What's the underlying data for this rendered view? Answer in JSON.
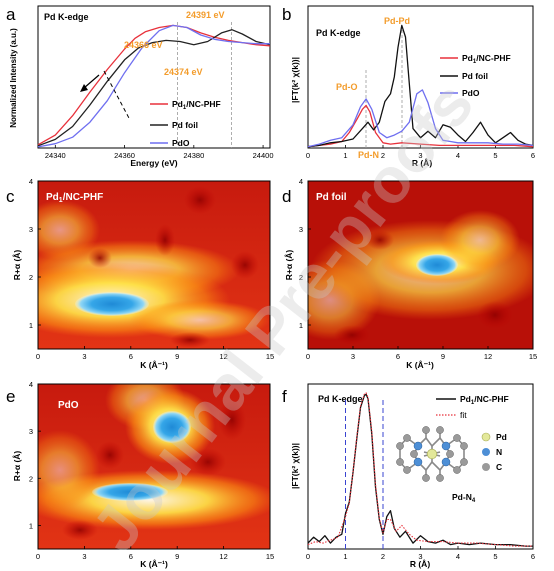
{
  "panels": {
    "a": {
      "letter": "a",
      "title": "Pd K-edge",
      "xlabel": "Energy (eV)",
      "ylabel": "Normalized Intensity (a.u.)",
      "annotations": [
        "24366 eV",
        "24374 eV",
        "24391 eV"
      ],
      "legend": [
        {
          "name": "Pd1/NC-PHF",
          "base": "Pd",
          "sub": "1",
          "rest": "/NC-PHF",
          "color": "#e8313b"
        },
        {
          "name": "Pd foil",
          "color": "#222222"
        },
        {
          "name": "PdO",
          "color": "#6f6ff0"
        }
      ]
    },
    "b": {
      "letter": "b",
      "title": "Pd K-edge",
      "xlabel": "R (Å)",
      "ylabel": "|FT(k² χ(k))|",
      "annotations": [
        "Pd-O",
        "Pd-N",
        "Pd-Pd"
      ],
      "legend": [
        {
          "name": "Pd1/NC-PHF",
          "base": "Pd",
          "sub": "1",
          "rest": "/NC-PHF",
          "color": "#e8313b"
        },
        {
          "name": "Pd foil",
          "color": "#111111"
        },
        {
          "name": "PdO",
          "color": "#6f6ff0"
        }
      ]
    },
    "c": {
      "letter": "c",
      "label": "Pd1/NC-PHF",
      "label_base": "Pd",
      "label_sub": "1",
      "label_rest": "/NC-PHF",
      "xlabel": "K (Å⁻¹)",
      "ylabel": "R+α (Å)"
    },
    "d": {
      "letter": "d",
      "label": "Pd foil",
      "xlabel": "K (Å⁻¹)",
      "ylabel": "R+α (Å)"
    },
    "e": {
      "letter": "e",
      "label": "PdO",
      "xlabel": "K (Å⁻¹)",
      "ylabel": "R+α (Å)"
    },
    "f": {
      "letter": "f",
      "title": "Pd K-edge",
      "xlabel": "R (Å)",
      "ylabel": "|FT(k² χ(k))|",
      "legend": [
        {
          "name": "Pd1/NC-PHF",
          "base": "Pd",
          "sub": "1",
          "rest": "/NC-PHF",
          "color": "#111111",
          "style": "solid"
        },
        {
          "name": "fit",
          "color": "#e8313b",
          "style": "dotted"
        }
      ],
      "inset": {
        "legend": [
          {
            "name": "Pd",
            "color": "#e3e89a"
          },
          {
            "name": "N",
            "color": "#4d8fd6"
          },
          {
            "name": "C",
            "color": "#9a9a9a"
          }
        ],
        "caption": "Pd-N4",
        "caption_base": "Pd-N",
        "caption_sub": "4"
      }
    }
  },
  "watermark": "Journal Pre-proofs",
  "chart_data": [
    {
      "panel": "a",
      "type": "line",
      "title": "Pd K-edge",
      "xlabel": "Energy (eV)",
      "ylabel": "Normalized Intensity (a.u.)",
      "xlim": [
        24335,
        24402
      ],
      "ylim": [
        0,
        1.32
      ],
      "xticks": [
        24340,
        24360,
        24380,
        24400
      ],
      "annotations": [
        "24366 eV",
        "24374 eV",
        "24391 eV"
      ],
      "series": [
        {
          "name": "Pd1/NC-PHF",
          "color": "#e8313b",
          "x": [
            24335,
            24340,
            24345,
            24350,
            24355,
            24360,
            24363,
            24366,
            24370,
            24374,
            24378,
            24382,
            24386,
            24390,
            24394,
            24398,
            24402
          ],
          "y": [
            0.03,
            0.12,
            0.3,
            0.52,
            0.73,
            0.92,
            1.02,
            1.08,
            1.12,
            1.14,
            1.12,
            1.07,
            1.03,
            1.0,
            0.98,
            0.96,
            0.95
          ]
        },
        {
          "name": "Pd foil",
          "color": "#222222",
          "x": [
            24335,
            24340,
            24345,
            24350,
            24355,
            24360,
            24364,
            24368,
            24372,
            24376,
            24380,
            24384,
            24388,
            24391,
            24394,
            24398,
            24402
          ],
          "y": [
            0.02,
            0.08,
            0.2,
            0.4,
            0.62,
            0.82,
            0.93,
            0.98,
            1.0,
            0.99,
            0.96,
            0.99,
            1.07,
            1.1,
            1.06,
            0.99,
            0.96
          ]
        },
        {
          "name": "PdO",
          "color": "#6f6ff0",
          "x": [
            24335,
            24340,
            24345,
            24350,
            24355,
            24360,
            24365,
            24370,
            24374,
            24378,
            24382,
            24386,
            24390,
            24394,
            24398,
            24402
          ],
          "y": [
            0.01,
            0.04,
            0.1,
            0.24,
            0.44,
            0.7,
            0.93,
            1.09,
            1.14,
            1.12,
            1.05,
            1.01,
            0.99,
            0.98,
            0.97,
            0.97
          ]
        }
      ]
    },
    {
      "panel": "b",
      "type": "line",
      "title": "Pd K-edge",
      "xlabel": "R (Å)",
      "ylabel": "|FT(k² χ(k))|",
      "xlim": [
        0,
        6
      ],
      "ylim": [
        0,
        1.1
      ],
      "xticks": [
        0,
        1,
        2,
        3,
        4,
        5,
        6
      ],
      "annotations": [
        "Pd-O",
        "Pd-N",
        "Pd-Pd"
      ],
      "series": [
        {
          "name": "Pd1/NC-PHF",
          "color": "#e8313b",
          "x": [
            0,
            0.3,
            0.6,
            0.9,
            1.1,
            1.3,
            1.45,
            1.55,
            1.65,
            1.8,
            2.0,
            2.2,
            2.5,
            3.0,
            3.5,
            4.0,
            4.5,
            5.0,
            5.5,
            6.0
          ],
          "y": [
            0.01,
            0.02,
            0.03,
            0.05,
            0.12,
            0.22,
            0.3,
            0.33,
            0.28,
            0.12,
            0.04,
            0.03,
            0.04,
            0.03,
            0.02,
            0.02,
            0.02,
            0.02,
            0.02,
            0.01
          ]
        },
        {
          "name": "Pd foil",
          "color": "#111111",
          "x": [
            0,
            0.3,
            0.6,
            0.9,
            1.2,
            1.45,
            1.6,
            1.75,
            1.9,
            2.05,
            2.2,
            2.3,
            2.4,
            2.5,
            2.6,
            2.7,
            2.8,
            3.0,
            3.2,
            3.4,
            3.6,
            3.8,
            4.0,
            4.2,
            4.4,
            4.6,
            4.8,
            5.0,
            5.2,
            5.4,
            5.6,
            5.8,
            6.0
          ],
          "y": [
            0.01,
            0.02,
            0.04,
            0.05,
            0.07,
            0.15,
            0.2,
            0.14,
            0.2,
            0.36,
            0.42,
            0.55,
            0.78,
            0.95,
            0.86,
            0.5,
            0.15,
            0.08,
            0.13,
            0.08,
            0.18,
            0.16,
            0.1,
            0.05,
            0.12,
            0.2,
            0.1,
            0.04,
            0.08,
            0.12,
            0.06,
            0.03,
            0.02
          ]
        },
        {
          "name": "PdO",
          "color": "#6f6ff0",
          "x": [
            0,
            0.3,
            0.6,
            0.9,
            1.2,
            1.4,
            1.55,
            1.7,
            1.9,
            2.1,
            2.3,
            2.5,
            2.7,
            2.9,
            3.05,
            3.2,
            3.4,
            3.6,
            3.8,
            4.0,
            4.4,
            4.8,
            5.2,
            5.6,
            6.0
          ],
          "y": [
            0.01,
            0.03,
            0.06,
            0.08,
            0.18,
            0.32,
            0.38,
            0.3,
            0.12,
            0.08,
            0.1,
            0.13,
            0.2,
            0.42,
            0.45,
            0.35,
            0.15,
            0.06,
            0.05,
            0.04,
            0.04,
            0.04,
            0.03,
            0.03,
            0.02
          ]
        }
      ]
    },
    {
      "panel": "c",
      "type": "heatmap",
      "title": "Pd1/NC-PHF",
      "xlabel": "K (Å⁻¹)",
      "ylabel": "R+α (Å)",
      "xlim": [
        0,
        15
      ],
      "ylim": [
        0.5,
        4
      ],
      "xticks": [
        0,
        3,
        6,
        9,
        12,
        15
      ],
      "yticks": [
        1,
        2,
        3,
        4
      ],
      "maximum": {
        "k": 4.8,
        "r": 1.5
      }
    },
    {
      "panel": "d",
      "type": "heatmap",
      "title": "Pd foil",
      "xlabel": "K (Å⁻¹)",
      "ylabel": "R+α (Å)",
      "xlim": [
        0,
        15
      ],
      "ylim": [
        0.5,
        4
      ],
      "xticks": [
        0,
        3,
        6,
        9,
        12,
        15
      ],
      "yticks": [
        1,
        2,
        3,
        4
      ],
      "maximum": {
        "k": 9.2,
        "r": 2.5
      }
    },
    {
      "panel": "e",
      "type": "heatmap",
      "title": "PdO",
      "xlabel": "K (Å⁻¹)",
      "ylabel": "R+α (Å)",
      "xlim": [
        0,
        15
      ],
      "ylim": [
        0.5,
        4
      ],
      "xticks": [
        0,
        3,
        6,
        9,
        12,
        15
      ],
      "yticks": [
        1,
        2,
        3,
        4
      ],
      "maxima": [
        {
          "k": 5.5,
          "r": 1.4
        },
        {
          "k": 8.6,
          "r": 3.0
        }
      ]
    },
    {
      "panel": "f",
      "type": "line",
      "title": "Pd K-edge",
      "xlabel": "R (Å)",
      "ylabel": "|FT(k² χ(k))|",
      "xlim": [
        0,
        6
      ],
      "ylim": [
        0,
        1.12
      ],
      "xticks": [
        0,
        1,
        2,
        3,
        4,
        5,
        6
      ],
      "fit_window": [
        1.0,
        2.0
      ],
      "series": [
        {
          "name": "Pd1/NC-PHF",
          "color": "#111111",
          "x": [
            0,
            0.15,
            0.3,
            0.45,
            0.6,
            0.75,
            0.9,
            1.0,
            1.1,
            1.2,
            1.3,
            1.4,
            1.5,
            1.55,
            1.6,
            1.7,
            1.8,
            1.9,
            2.0,
            2.1,
            2.2,
            2.3,
            2.45,
            2.6,
            2.8,
            3.0,
            3.2,
            3.4,
            3.6,
            3.8,
            4.0,
            4.3,
            4.6,
            5.0,
            5.4,
            5.8,
            6.0
          ],
          "y": [
            0.04,
            0.08,
            0.05,
            0.09,
            0.04,
            0.08,
            0.1,
            0.24,
            0.32,
            0.52,
            0.75,
            0.96,
            1.04,
            1.05,
            1.02,
            0.78,
            0.42,
            0.2,
            0.1,
            0.22,
            0.26,
            0.14,
            0.08,
            0.12,
            0.04,
            0.09,
            0.05,
            0.04,
            0.06,
            0.03,
            0.04,
            0.03,
            0.04,
            0.03,
            0.03,
            0.02,
            0.02
          ]
        },
        {
          "name": "fit",
          "color": "#e8313b",
          "x": [
            0,
            0.2,
            0.4,
            0.6,
            0.8,
            1.0,
            1.1,
            1.2,
            1.3,
            1.4,
            1.5,
            1.55,
            1.6,
            1.7,
            1.8,
            1.9,
            2.0,
            2.1,
            2.2,
            2.35,
            2.5,
            2.7,
            2.9,
            3.2,
            3.6,
            4.0,
            4.5,
            5.0,
            5.5,
            6.0
          ],
          "y": [
            0.03,
            0.05,
            0.04,
            0.06,
            0.08,
            0.22,
            0.31,
            0.52,
            0.76,
            0.97,
            1.05,
            1.06,
            1.03,
            0.8,
            0.44,
            0.21,
            0.11,
            0.2,
            0.2,
            0.12,
            0.16,
            0.1,
            0.06,
            0.05,
            0.05,
            0.04,
            0.04,
            0.03,
            0.02,
            0.02
          ]
        }
      ]
    }
  ]
}
